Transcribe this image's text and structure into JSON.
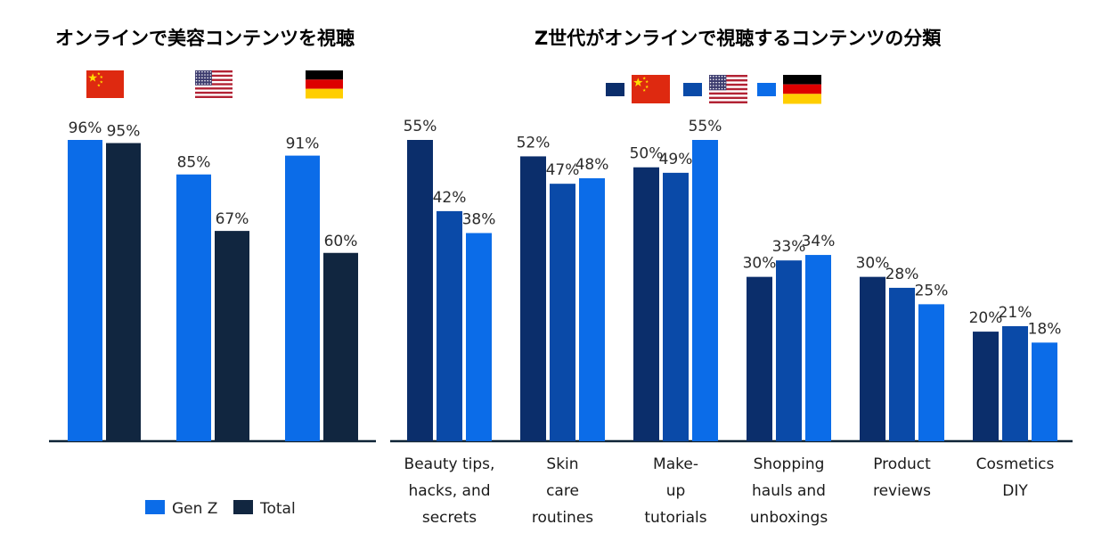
{
  "chart_data": [
    {
      "type": "bar",
      "title": "オンラインで美容コンテンツを視聴",
      "categories": [
        "China",
        "USA",
        "Germany"
      ],
      "category_flags": [
        "cn-flag",
        "us-flag",
        "de-flag"
      ],
      "series": [
        {
          "name": "Gen Z",
          "color": "#0b6ce8",
          "values": [
            96,
            85,
            91
          ]
        },
        {
          "name": "Total",
          "color": "#112640",
          "values": [
            95,
            67,
            60
          ]
        }
      ],
      "value_suffix": "%",
      "ylim": [
        0,
        100
      ],
      "legend": "bottom"
    },
    {
      "type": "bar",
      "title": "Z世代がオンラインで視聴するコンテンツの分類",
      "categories": [
        [
          "Beauty tips,",
          "hacks, and",
          "secrets"
        ],
        [
          "Skin",
          "care",
          "routines"
        ],
        [
          "Make-",
          "up",
          "tutorials"
        ],
        [
          "Shopping",
          "hauls and",
          "unboxings"
        ],
        [
          "Product",
          "reviews"
        ],
        [
          "Cosmetics",
          "DIY"
        ]
      ],
      "series": [
        {
          "name": "China",
          "flag": "cn-flag",
          "color": "#0b2e6b",
          "values": [
            55,
            52,
            50,
            30,
            30,
            20
          ]
        },
        {
          "name": "USA",
          "flag": "us-flag",
          "color": "#0a4aa8",
          "values": [
            42,
            47,
            49,
            33,
            28,
            21
          ]
        },
        {
          "name": "Germany",
          "flag": "de-flag",
          "color": "#0b6ce8",
          "values": [
            38,
            48,
            55,
            34,
            25,
            18
          ]
        }
      ],
      "value_suffix": "%",
      "ylim": [
        0,
        100
      ],
      "legend": "top"
    }
  ]
}
